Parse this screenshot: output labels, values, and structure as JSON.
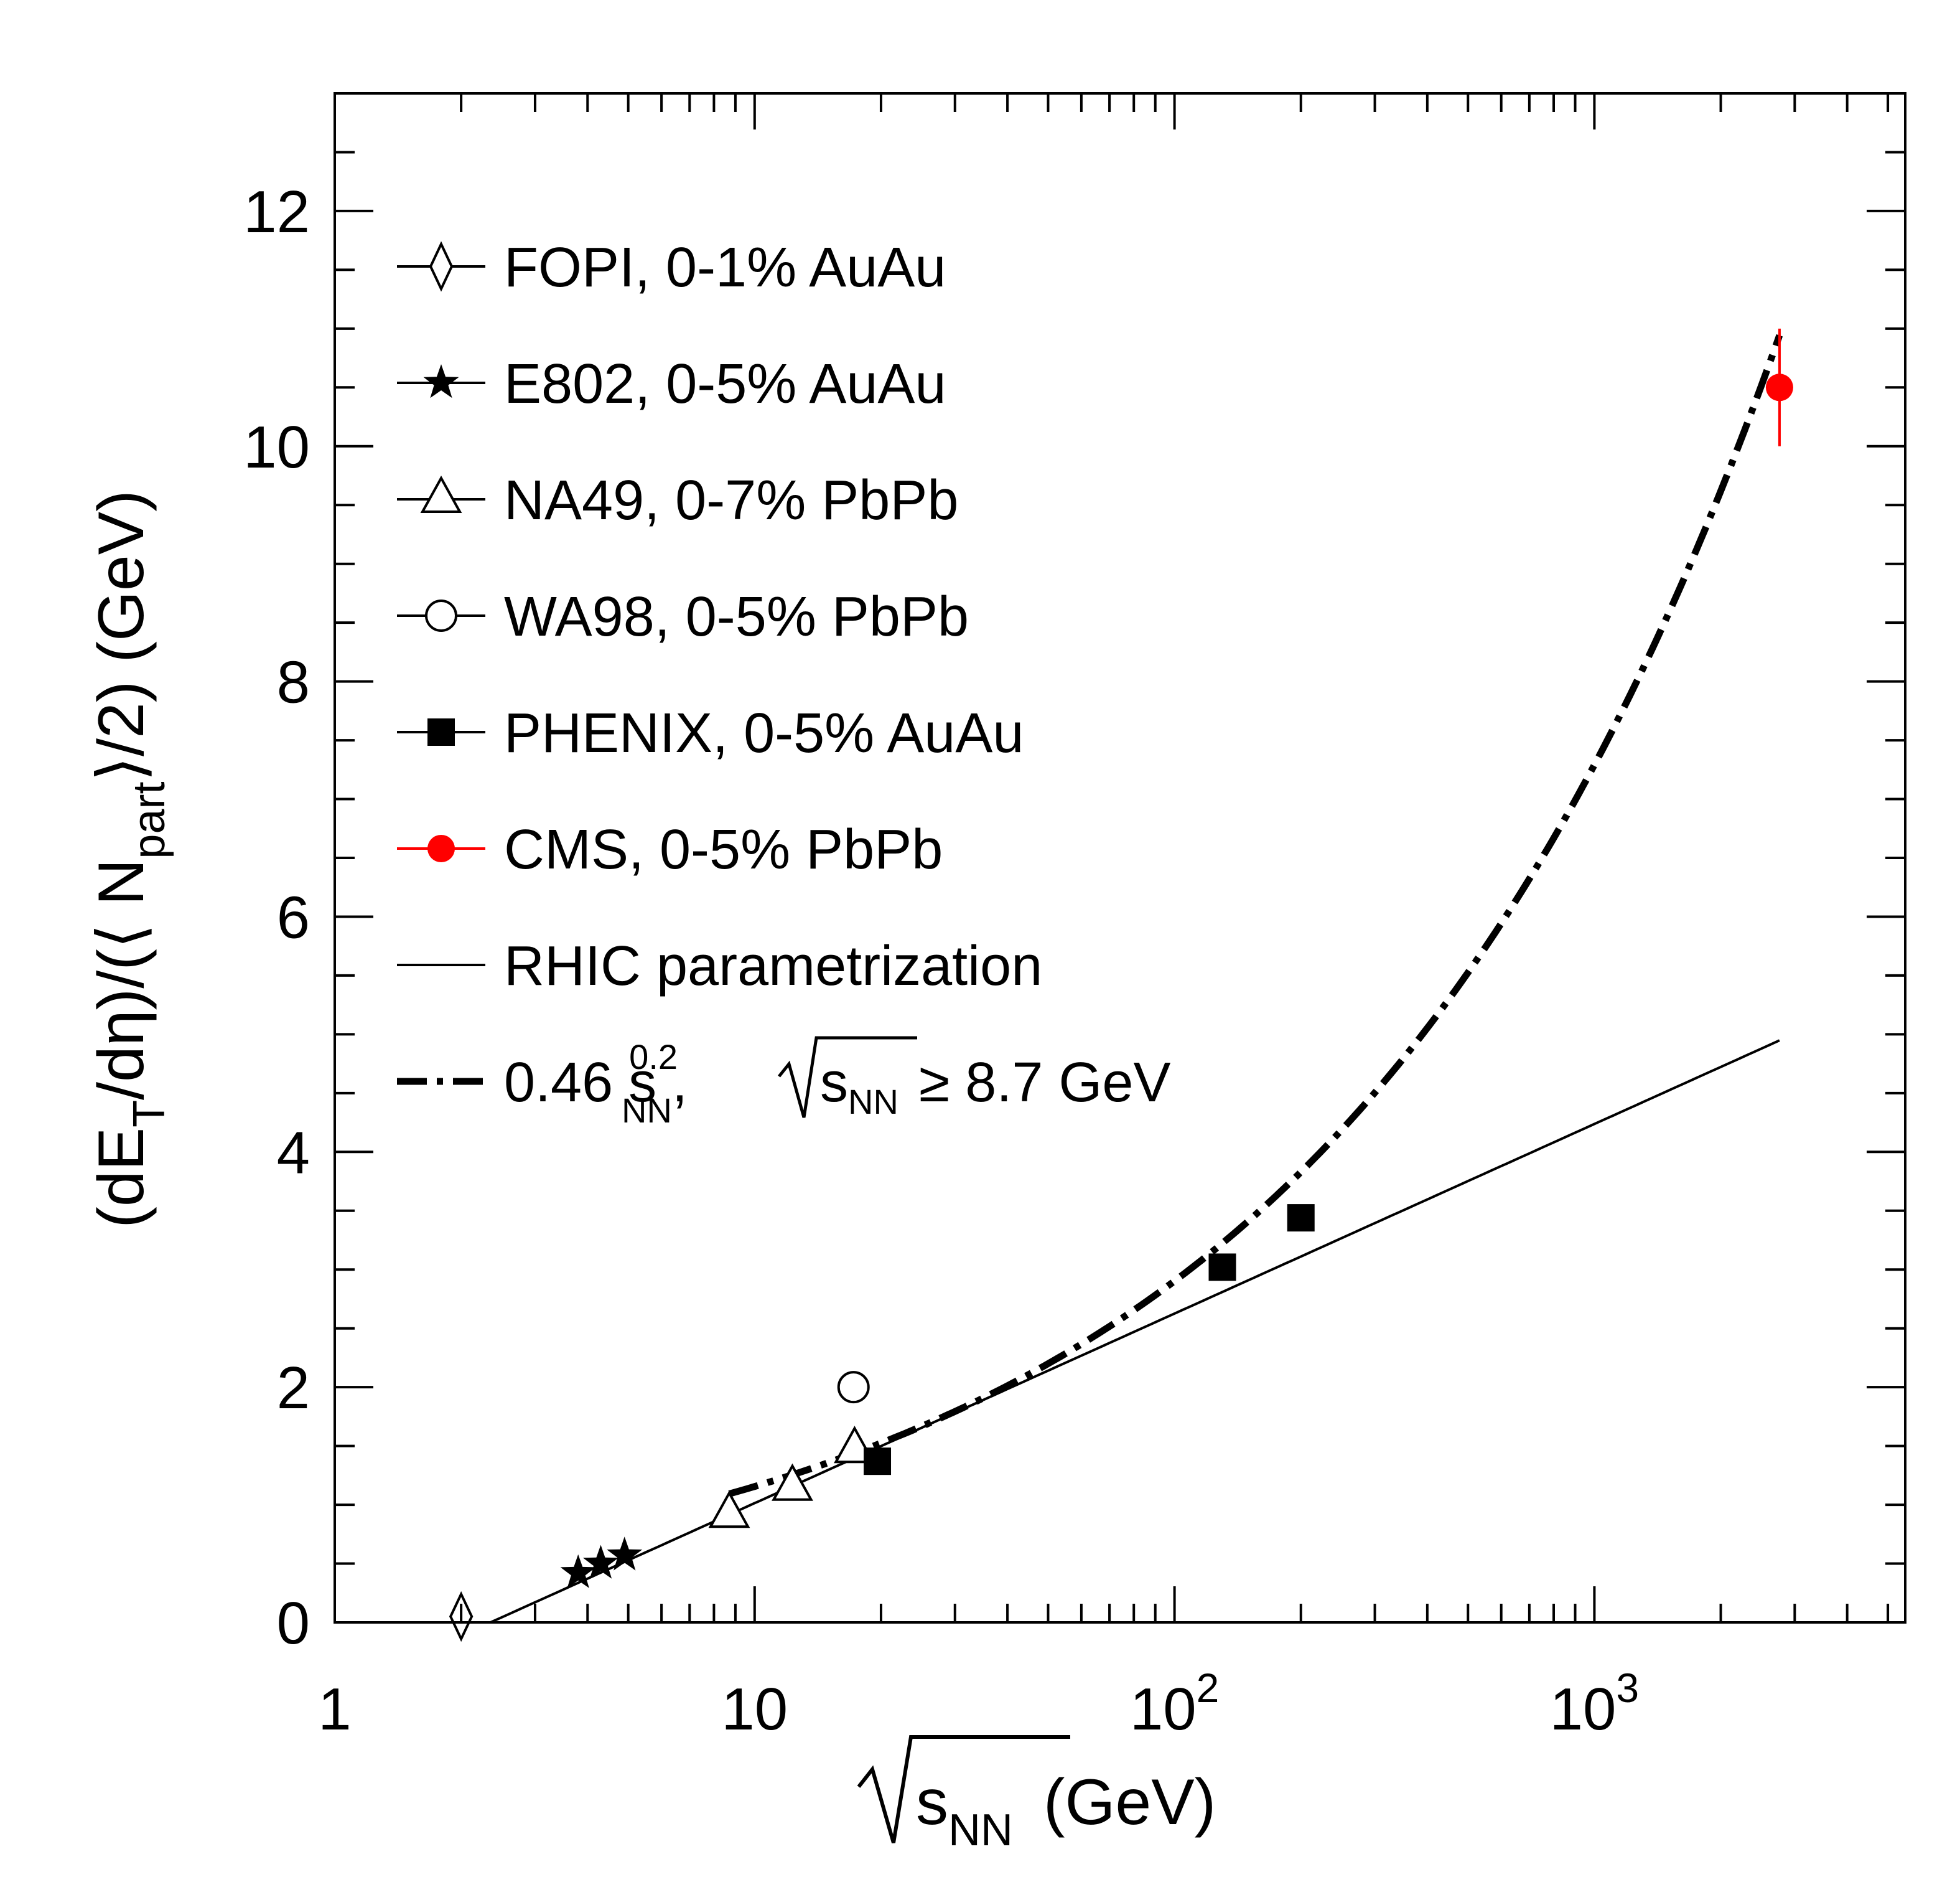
{
  "chart_data": {
    "type": "scatter",
    "x_scale": "log",
    "xlim": [
      1,
      5500
    ],
    "ylim": [
      0,
      13
    ],
    "grid": false,
    "legend_position": "top-left",
    "x_ticks": [
      {
        "value": 1,
        "label": "1"
      },
      {
        "value": 10,
        "label": "10"
      },
      {
        "value": 100,
        "base": "10",
        "exp": "2"
      },
      {
        "value": 1000,
        "base": "10",
        "exp": "3"
      }
    ],
    "y_ticks": [
      0,
      2,
      4,
      6,
      8,
      10,
      12
    ],
    "xlabel": {
      "sqrt": "s",
      "sub": "NN",
      "unit": "(GeV)"
    },
    "ylabel": {
      "p1": "(dE",
      "sub1": "T",
      "p2": "/dη)/(",
      "lang": "⟨",
      "p3": " N",
      "sub2": "part",
      "rang": "⟩",
      "p4": "/2) (GeV)"
    },
    "series": [
      {
        "name": "FOPI, 0-1% AuAu",
        "marker": "open-diamond",
        "color": "#000000",
        "points": [
          {
            "x": 2.0,
            "y": 0.05
          }
        ]
      },
      {
        "name": "E802, 0-5% AuAu",
        "marker": "star",
        "color": "#000000",
        "points": [
          {
            "x": 3.8,
            "y": 0.42
          },
          {
            "x": 4.3,
            "y": 0.5
          },
          {
            "x": 4.9,
            "y": 0.57
          }
        ]
      },
      {
        "name": "NA49, 0-7% PbPb",
        "marker": "open-triangle",
        "color": "#000000",
        "points": [
          {
            "x": 8.7,
            "y": 0.92
          },
          {
            "x": 12.3,
            "y": 1.15
          },
          {
            "x": 17.3,
            "y": 1.47
          }
        ]
      },
      {
        "name": "WA98, 0-5% PbPb",
        "marker": "open-circle",
        "color": "#000000",
        "points": [
          {
            "x": 17.2,
            "y": 2.0
          }
        ]
      },
      {
        "name": "PHENIX, 0-5% AuAu",
        "marker": "filled-square",
        "color": "#000000",
        "points": [
          {
            "x": 19.6,
            "y": 1.37
          },
          {
            "x": 130,
            "y": 3.02
          },
          {
            "x": 200,
            "y": 3.44
          }
        ]
      },
      {
        "name": "CMS, 0-5% PbPb",
        "marker": "filled-circle",
        "color": "#ff0000",
        "points": [
          {
            "x": 2760,
            "y": 10.5,
            "yerr": 0.5
          }
        ]
      }
    ],
    "curves": [
      {
        "name": "RHIC parametrization",
        "style": "solid",
        "formula": "0.7*ln(x/2.35)",
        "xrange": [
          2.35,
          2760
        ]
      },
      {
        "name_main": "0.46 s",
        "name_sub": "NN",
        "name_sup": "0.2",
        "name_cond": "≥ 8.7 GeV",
        "style": "dash-dot",
        "formula": "0.46*x^0.4",
        "xrange": [
          8.7,
          2760
        ]
      }
    ]
  }
}
